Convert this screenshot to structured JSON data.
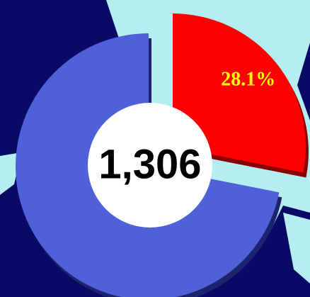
{
  "chart_data": {
    "type": "pie",
    "values": [
      28.1,
      71.9
    ],
    "value_labels": [
      "28.1%",
      null
    ],
    "colors": [
      "#ff0000",
      "#5060d8"
    ],
    "depth_colors": [
      "#8a0000",
      "#1c2470"
    ],
    "explode": [
      true,
      false
    ],
    "center_label": "1,306"
  }
}
